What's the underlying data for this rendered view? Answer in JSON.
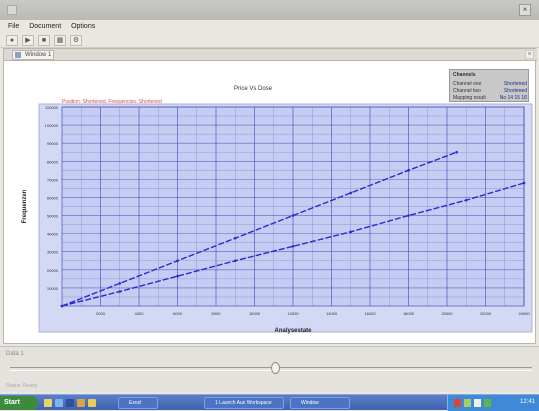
{
  "window": {
    "title": "",
    "menu": [
      "File",
      "Document",
      "Options"
    ]
  },
  "document_tab": {
    "label": "Window 1"
  },
  "legend_box": {
    "heading": "Channels",
    "rows": [
      {
        "key": "Channel one",
        "value": "Shortened"
      },
      {
        "key": "Channel two",
        "value": "Shortened"
      },
      {
        "key": "Mapping result",
        "value": "No 14 15 16"
      }
    ]
  },
  "chart_data": {
    "type": "line",
    "title": "Price Vs Dose",
    "subtitle": "Position: Shortened, Frequencies: Shortened",
    "xlabel": "Analysestate",
    "ylabel": "Frequenzen",
    "xlim": [
      0,
      24000
    ],
    "ylim": [
      0,
      110000
    ],
    "x_ticks": [
      2000,
      4000,
      6000,
      8000,
      10000,
      12000,
      14000,
      16000,
      18000,
      20000,
      22000,
      24000
    ],
    "y_ticks": [
      10000,
      20000,
      30000,
      40000,
      50000,
      60000,
      70000,
      80000,
      90000,
      100000,
      110000
    ],
    "grid": true,
    "series": [
      {
        "x": [
          0,
          3000,
          6000,
          9000,
          12000,
          15000,
          18000,
          20500
        ],
        "y": [
          0,
          12500,
          25000,
          37500,
          50000,
          62500,
          75000,
          85000
        ],
        "color": "#2a2ad0"
      },
      {
        "x": [
          0,
          3000,
          6000,
          9000,
          12000,
          15000,
          18000,
          21000,
          24000
        ],
        "y": [
          0,
          8000,
          16500,
          25000,
          33000,
          41000,
          50000,
          58500,
          68000
        ],
        "color": "#2a2ad0"
      }
    ]
  },
  "bottom_panel": {
    "label": "Data 1",
    "footer": "Status: Ready"
  },
  "taskbar": {
    "start_label": "Start",
    "tasks": [
      "Excel",
      "1 Launch Aux Workspace",
      "Window"
    ],
    "clock": "12:41"
  },
  "colors": {
    "plot_bg": "#c6cdf2",
    "grid_line": "#3b3bb0",
    "series": "#2a2ad0"
  }
}
